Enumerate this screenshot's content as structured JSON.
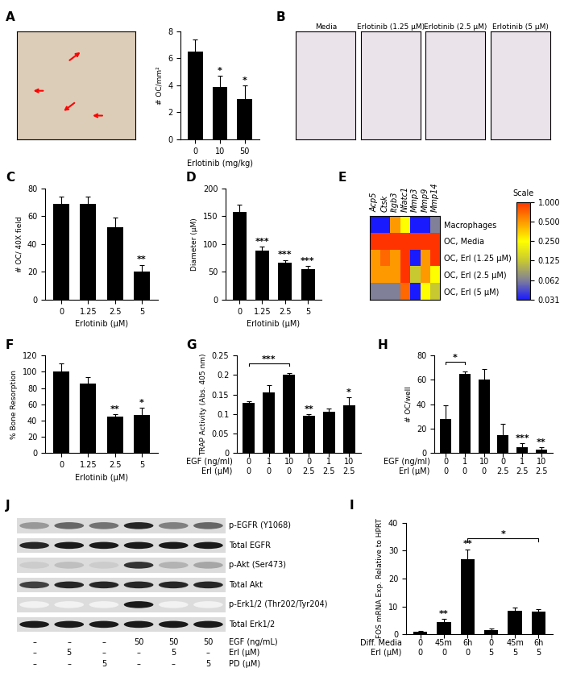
{
  "chart_data": [
    {
      "panel_label": "A",
      "type": "image"
    },
    {
      "type": "bar",
      "categories": [
        "0",
        "10",
        "50"
      ],
      "values": [
        6.5,
        3.9,
        3.0
      ],
      "errors": [
        0.9,
        0.8,
        1.0
      ],
      "color": "black",
      "xlabel": "Erlotinib (mg/kg)",
      "ylabel": "# OC/mm²",
      "ylim": [
        0,
        8
      ],
      "yticks": [
        0,
        2,
        4,
        6,
        8
      ],
      "annotations": [
        {
          "bar": 1,
          "text": "*"
        },
        {
          "bar": 2,
          "text": "*"
        }
      ]
    },
    {
      "panel_label": "B",
      "type": "image_row",
      "titles": [
        "Media",
        "Erlotinib (1.25 µM)",
        "Erlotinib (2.5 µM)",
        "Erlotinib (5 µM)"
      ]
    },
    {
      "panel_label": "C",
      "type": "bar",
      "categories": [
        "0",
        "1.25",
        "2.5",
        "5"
      ],
      "values": [
        69,
        69,
        52,
        20
      ],
      "errors": [
        5,
        5,
        7,
        5
      ],
      "color": "black",
      "xlabel": "Erlotinib (µM)",
      "ylabel": "# OC/ 40X field",
      "ylim": [
        0,
        80
      ],
      "yticks": [
        0,
        20,
        40,
        60,
        80
      ],
      "annotations": [
        {
          "bar": 3,
          "text": "**"
        }
      ]
    },
    {
      "panel_label": "D",
      "type": "bar",
      "categories": [
        "0",
        "1.25",
        "2.5",
        "5"
      ],
      "values": [
        158,
        88,
        66,
        55
      ],
      "errors": [
        12,
        7,
        5,
        5
      ],
      "color": "black",
      "xlabel": "Erlotinib (µM)",
      "ylabel": "Diameter (µM)",
      "ylim": [
        0,
        200
      ],
      "yticks": [
        0,
        50,
        100,
        150,
        200
      ],
      "annotations": [
        {
          "bar": 1,
          "text": "***"
        },
        {
          "bar": 2,
          "text": "***"
        },
        {
          "bar": 3,
          "text": "***"
        }
      ]
    },
    {
      "panel_label": "E",
      "type": "heatmap",
      "columns": [
        "Acp5",
        "Ctsk",
        "Itgb3",
        "Nfatc1",
        "Mmp3",
        "Mmp9",
        "Mmp14"
      ],
      "rows": [
        "Macrophages",
        "OC, Media",
        "OC, Erl (1.25 µM)",
        "OC, Erl (2.5 µM)",
        "OC, Erl (5 µM)"
      ],
      "cells": [
        [
          0.031,
          0.031,
          0.5,
          0.25,
          0.031,
          0.031,
          0.062
        ],
        [
          1.0,
          1.0,
          1.0,
          1.0,
          1.0,
          1.0,
          1.0
        ],
        [
          0.5,
          0.7,
          0.5,
          1.0,
          0.031,
          0.5,
          1.0
        ],
        [
          0.5,
          0.5,
          0.5,
          1.0,
          0.125,
          0.5,
          0.25
        ],
        [
          0.062,
          0.062,
          0.062,
          0.7,
          0.031,
          0.25,
          0.125
        ]
      ],
      "colorbar": {
        "title": "Scale",
        "range": [
          0.031,
          1.0
        ],
        "ticks": [
          {
            "value": 1.0,
            "label": "1.000"
          },
          {
            "value": 0.5,
            "label": "0.500"
          },
          {
            "value": 0.25,
            "label": "0.250"
          },
          0.125,
          0.062,
          0.031
        ]
      }
    },
    {
      "panel_label": "F",
      "type": "bar",
      "categories": [
        "0",
        "1.25",
        "2.5",
        "5"
      ],
      "values": [
        100,
        85,
        45,
        47
      ],
      "errors": [
        10,
        8,
        3,
        9
      ],
      "color": "black",
      "xlabel": "Erlotinib (µM)",
      "ylabel": "% Bone Resorption",
      "ylim": [
        0,
        120
      ],
      "yticks": [
        0,
        20,
        40,
        60,
        80,
        100,
        120
      ],
      "annotations": [
        {
          "bar": 2,
          "text": "**"
        },
        {
          "bar": 3,
          "text": "*"
        }
      ]
    },
    {
      "panel_label": "G",
      "type": "bar",
      "x_rows": [
        {
          "label": "EGF (ng/ml)",
          "values": [
            "0",
            "1",
            "10",
            "0",
            "1",
            "10"
          ]
        },
        {
          "label": "Erl (µM)",
          "values": [
            "0",
            "0",
            "0",
            "2.5",
            "2.5",
            "2.5"
          ]
        }
      ],
      "values": [
        0.128,
        0.155,
        0.2,
        0.095,
        0.105,
        0.123
      ],
      "errors": [
        0.005,
        0.018,
        0.005,
        0.005,
        0.01,
        0.02
      ],
      "color": "black",
      "ylabel": "TRAP Activity (Abs. 405 nm)",
      "ylim": [
        0,
        0.25
      ],
      "yticks": [
        0,
        0.05,
        0.1,
        0.15,
        0.2,
        0.25
      ],
      "annotations": [
        {
          "bar": 3,
          "text": "**"
        },
        {
          "bar": 5,
          "text": "*"
        }
      ],
      "brackets": [
        {
          "from": 0,
          "to": 2,
          "text": "***"
        }
      ]
    },
    {
      "panel_label": "H",
      "type": "bar",
      "x_rows": [
        {
          "label": "EGF (ng/ml)",
          "values": [
            "0",
            "1",
            "10",
            "0",
            "1",
            "10"
          ]
        },
        {
          "label": "Erl (µM)",
          "values": [
            "0",
            "0",
            "0",
            "2.5",
            "2.5",
            "2.5"
          ]
        }
      ],
      "values": [
        28,
        65,
        60,
        15,
        5,
        3
      ],
      "errors": [
        11,
        2,
        9,
        9,
        3,
        1.5
      ],
      "color": "black",
      "ylabel": "# OC/well",
      "ylim": [
        0,
        80
      ],
      "yticks": [
        0,
        20,
        40,
        60,
        80
      ],
      "annotations": [
        {
          "bar": 4,
          "text": "***"
        },
        {
          "bar": 5,
          "text": "**"
        }
      ],
      "brackets": [
        {
          "from": 0,
          "to": 1,
          "text": "*"
        }
      ]
    },
    {
      "panel_label": "J",
      "type": "western_blot",
      "bands": [
        {
          "name": "p-EGFR (Y1068)",
          "intensity": [
            0.4,
            0.6,
            0.55,
            0.85,
            0.5,
            0.6
          ]
        },
        {
          "name": "Total EGFR",
          "intensity": [
            0.85,
            0.9,
            0.9,
            0.9,
            0.9,
            0.9
          ]
        },
        {
          "name": "p-Akt (Ser473)",
          "intensity": [
            0.2,
            0.25,
            0.2,
            0.8,
            0.3,
            0.35
          ]
        },
        {
          "name": "Total Akt",
          "intensity": [
            0.75,
            0.85,
            0.85,
            0.85,
            0.85,
            0.85
          ]
        },
        {
          "name": "p-Erk1/2 (Thr202/Tyr204)",
          "intensity": [
            0.05,
            0.05,
            0.05,
            0.9,
            0.05,
            0.05
          ]
        },
        {
          "name": "Total Erk1/2",
          "intensity": [
            0.9,
            0.9,
            0.9,
            0.9,
            0.9,
            0.9
          ]
        }
      ],
      "lanes": [
        {
          "label": "EGF (ng/mL)",
          "values": [
            "–",
            "–",
            "–",
            "50",
            "50",
            "50"
          ]
        },
        {
          "label": "Erl (µM)",
          "values": [
            "–",
            "5",
            "–",
            "–",
            "5",
            "–"
          ]
        },
        {
          "label": "PD (µM)",
          "values": [
            "–",
            "–",
            "5",
            "–",
            "–",
            "5"
          ]
        }
      ]
    },
    {
      "panel_label": "I",
      "type": "bar",
      "x_rows": [
        {
          "label": "Diff. Media",
          "values": [
            "0",
            "45m",
            "6h",
            "0",
            "45m",
            "6h"
          ]
        },
        {
          "label": "Erl (µM)",
          "values": [
            "0",
            "0",
            "0",
            "5",
            "5",
            "5"
          ]
        }
      ],
      "values": [
        1,
        4.5,
        27,
        1.5,
        8.5,
        8
      ],
      "errors": [
        0.3,
        1,
        3.5,
        0.5,
        1,
        1
      ],
      "color": "black",
      "ylabel": "FOS mRNA Exp. Relative to HPRT",
      "ylim": [
        0,
        40
      ],
      "yticks": [
        0,
        10,
        20,
        30,
        40
      ],
      "annotations": [
        {
          "bar": 1,
          "text": "**"
        },
        {
          "bar": 2,
          "text": "**"
        }
      ],
      "brackets": [
        {
          "from": 2,
          "to": 5,
          "text": "*"
        }
      ]
    }
  ]
}
